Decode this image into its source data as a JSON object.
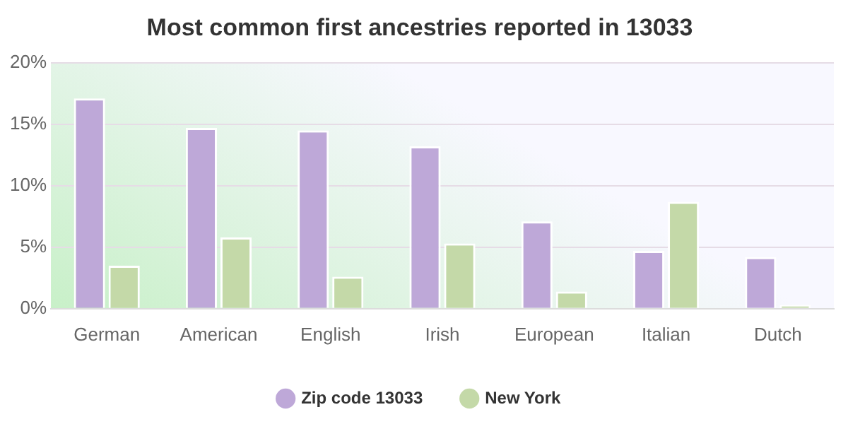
{
  "chart_data": {
    "type": "bar",
    "title": "Most common first ancestries reported in 13033",
    "categories": [
      "German",
      "American",
      "English",
      "Irish",
      "European",
      "Italian",
      "Dutch"
    ],
    "series": [
      {
        "name": "Zip code 13033",
        "color": "#bea8d8",
        "values": [
          17.1,
          14.7,
          14.5,
          13.2,
          7.1,
          4.7,
          4.2
        ]
      },
      {
        "name": "New York",
        "color": "#c4d9a8",
        "values": [
          3.5,
          5.8,
          2.6,
          5.3,
          1.4,
          8.7,
          0.3
        ]
      }
    ],
    "ylim": [
      0,
      20
    ],
    "yticks": [
      {
        "value": 0,
        "label": "0%"
      },
      {
        "value": 5,
        "label": "5%"
      },
      {
        "value": 10,
        "label": "10%"
      },
      {
        "value": 15,
        "label": "15%"
      },
      {
        "value": 20,
        "label": "20%"
      }
    ],
    "grid": "y",
    "legend": "bottom"
  }
}
